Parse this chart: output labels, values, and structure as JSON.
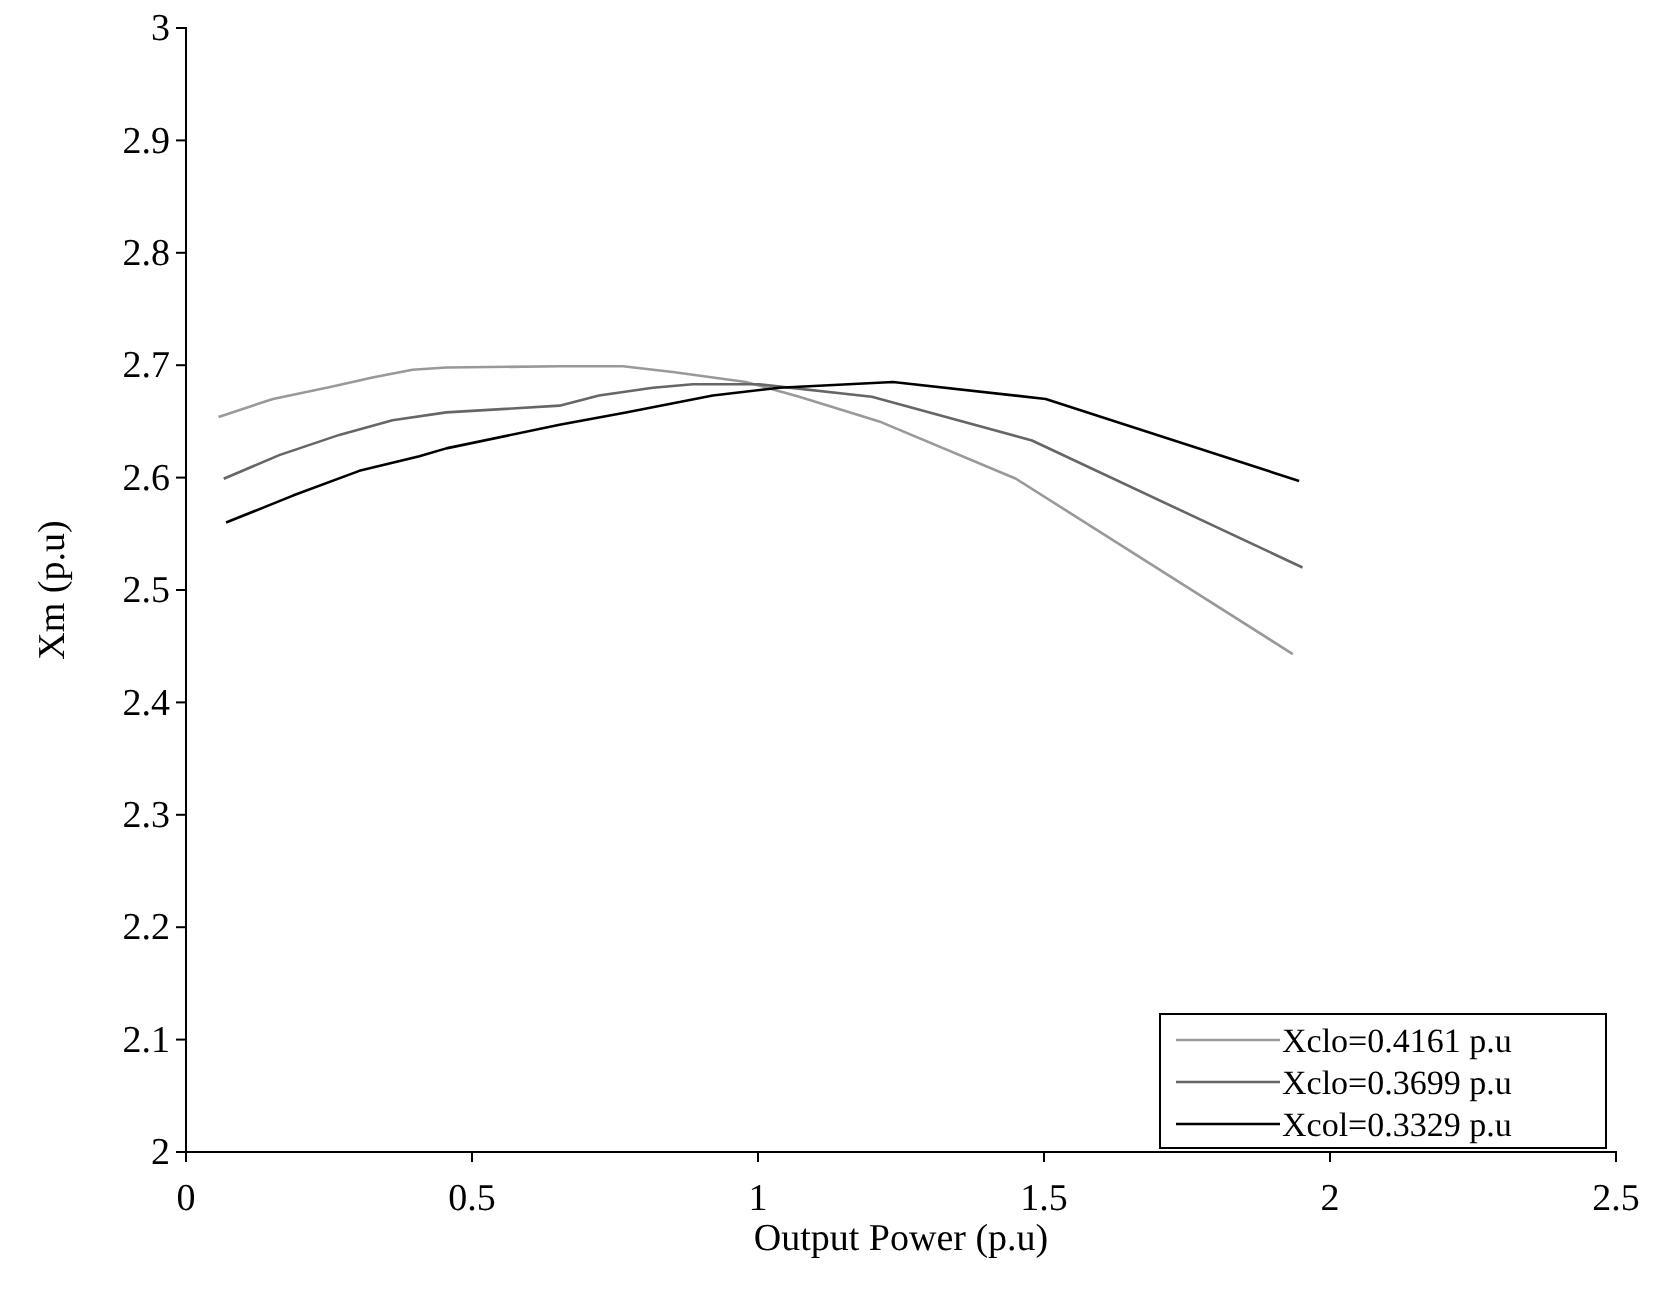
{
  "chart_data": {
    "type": "line",
    "xlabel": "Output Power (p.u)",
    "ylabel": "Xm (p.u)",
    "xlim": [
      0,
      2.5
    ],
    "xticks": [
      0,
      0.5,
      1,
      1.5,
      2,
      2.5
    ],
    "ylim": [
      2,
      3
    ],
    "yticks": [
      2,
      2.1,
      2.2,
      2.3,
      2.4,
      2.5,
      2.6,
      2.7,
      2.8,
      2.9,
      3
    ],
    "grid": false,
    "legend": "bottom right",
    "marker": "none",
    "line_style": "solid",
    "series": [
      {
        "name": "Xclo=0.4161 p.u",
        "color": "#999999",
        "x": [
          0.057,
          0.152,
          0.256,
          0.326,
          0.396,
          0.455,
          0.653,
          0.764,
          0.851,
          0.979,
          1.072,
          1.212,
          1.451,
          1.935
        ],
        "values": [
          2.654,
          2.67,
          2.681,
          2.689,
          2.696,
          2.698,
          2.699,
          2.699,
          2.694,
          2.685,
          2.672,
          2.65,
          2.599,
          2.443
        ]
      },
      {
        "name": "Xclo=0.3699 p.u",
        "color": "#666666",
        "x": [
          0.066,
          0.163,
          0.268,
          0.361,
          0.455,
          0.653,
          0.722,
          0.816,
          0.886,
          1.002,
          1.199,
          1.479,
          1.952
        ],
        "values": [
          2.599,
          2.62,
          2.638,
          2.651,
          2.658,
          2.664,
          2.673,
          2.68,
          2.683,
          2.683,
          2.672,
          2.633,
          2.52
        ]
      },
      {
        "name": "Xcol=0.3329 p.u",
        "color": "#000000",
        "x": [
          0.07,
          0.187,
          0.303,
          0.408,
          0.455,
          0.653,
          0.769,
          0.921,
          1.037,
          1.236,
          1.503,
          1.946
        ],
        "values": [
          2.56,
          2.584,
          2.606,
          2.619,
          2.626,
          2.647,
          2.658,
          2.673,
          2.68,
          2.685,
          2.67,
          2.597
        ]
      }
    ]
  }
}
